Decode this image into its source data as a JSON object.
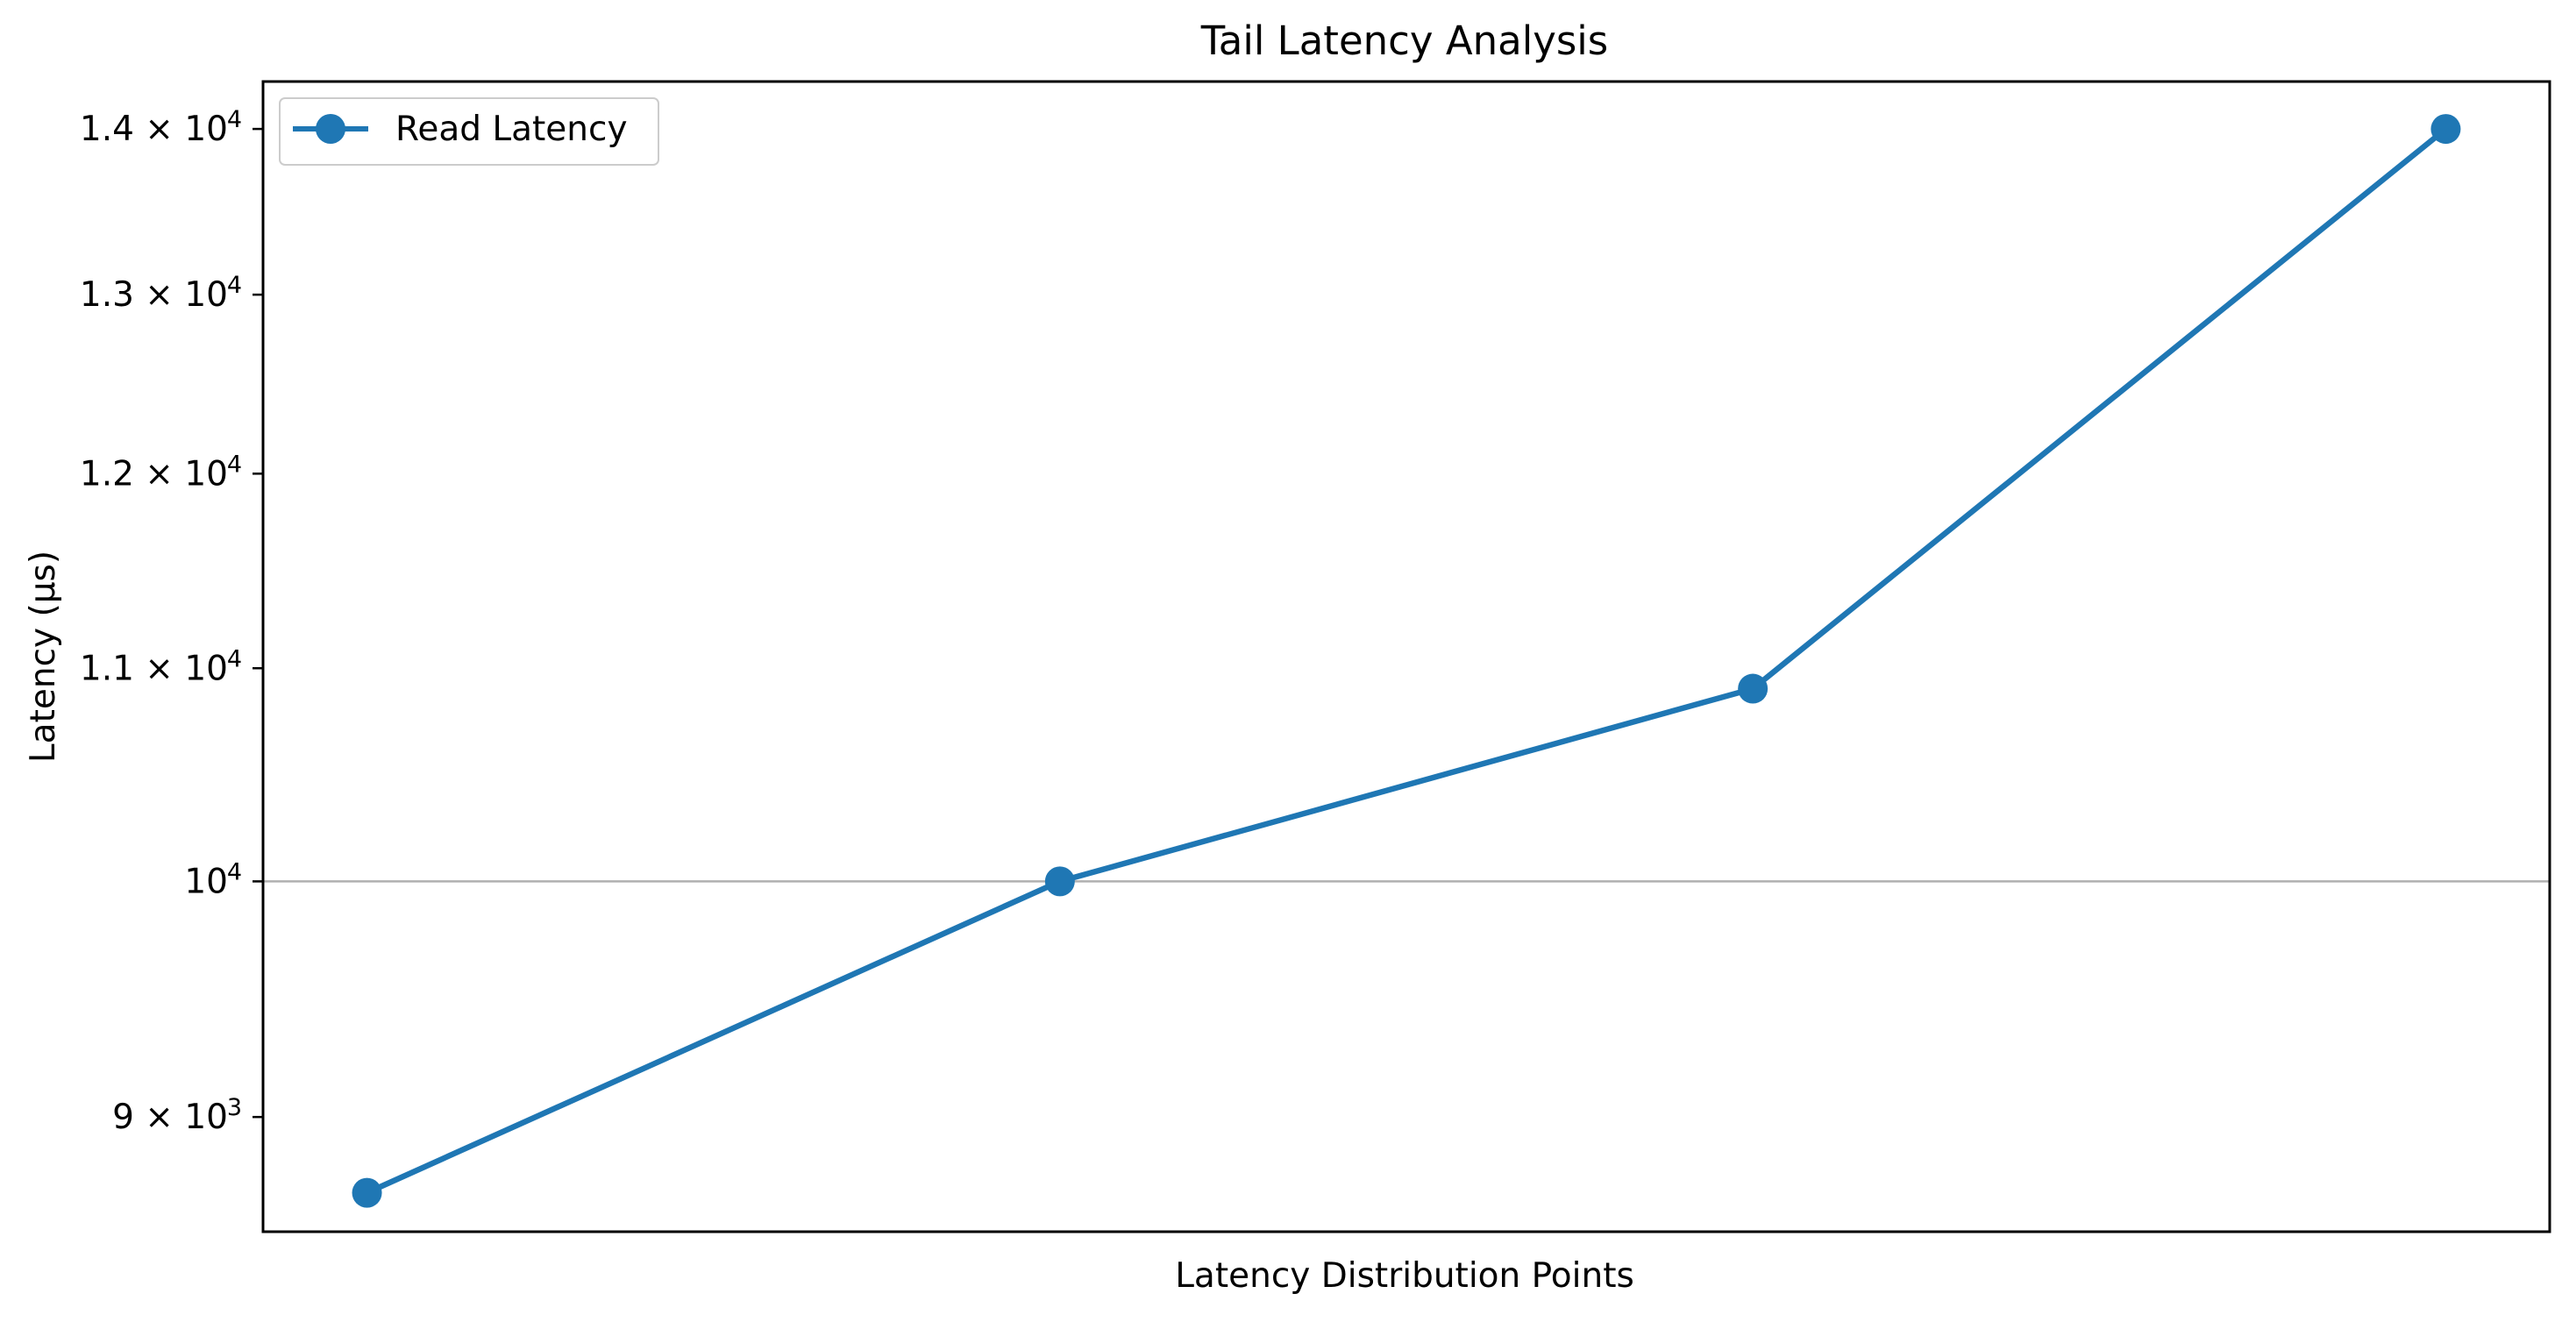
{
  "chart_data": {
    "type": "line",
    "title": "Tail Latency Analysis",
    "xlabel": "Latency Distribution Points",
    "ylabel": "Latency (µs)",
    "y_scale": "log",
    "ylim": [
      8550,
      14300
    ],
    "x_ticks_shown": false,
    "grid": "horizontal line at 10^4 only",
    "legend_position": "top-left",
    "y_ticks": [
      {
        "value": 9000,
        "mantissa": "9",
        "base": "10",
        "exp": "3"
      },
      {
        "value": 10000,
        "mantissa": "",
        "base": "10",
        "exp": "4"
      },
      {
        "value": 11000,
        "mantissa": "1.1",
        "base": "10",
        "exp": "4"
      },
      {
        "value": 12000,
        "mantissa": "1.2",
        "base": "10",
        "exp": "4"
      },
      {
        "value": 13000,
        "mantissa": "1.3",
        "base": "10",
        "exp": "4"
      },
      {
        "value": 14000,
        "mantissa": "1.4",
        "base": "10",
        "exp": "4"
      }
    ],
    "x": [
      1,
      2,
      3,
      4
    ],
    "series": [
      {
        "name": "Read Latency",
        "color": "#1f77b4",
        "values": [
          8700,
          10000,
          10900,
          14000
        ]
      }
    ]
  }
}
